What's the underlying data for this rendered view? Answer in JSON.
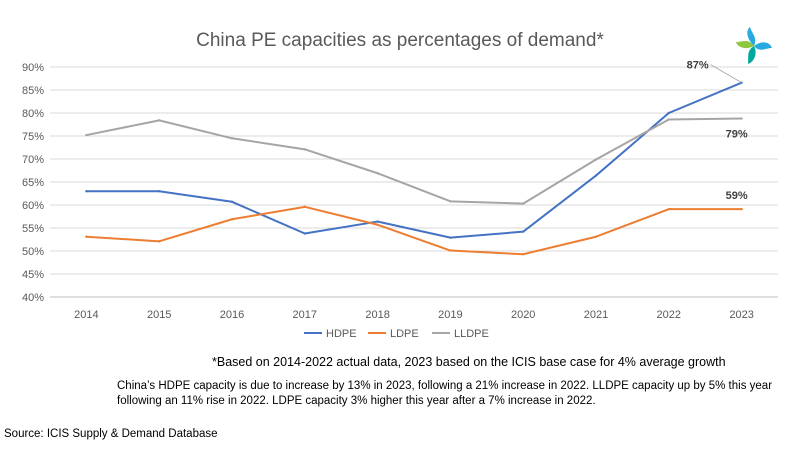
{
  "title": "China PE capacities as percentages of demand*",
  "footnote": "*Based on 2014-2022 actual data, 2023 based on the ICIS base case for 4% average growth",
  "summary": "China’s HDPE capacity is due to increase by 13% in 2023, following a 21% increase in 2022. LLDPE capacity up by 5% this year following an 11% rise in 2022. LDPE capacity 3% higher this year after a 7% increase in 2022.",
  "source": "Source: ICIS Supply & Demand Database",
  "chart_data": {
    "type": "line",
    "title": "China PE capacities as percentages of demand*",
    "xlabel": "",
    "ylabel": "",
    "categories": [
      "2014",
      "2015",
      "2016",
      "2017",
      "2018",
      "2019",
      "2020",
      "2021",
      "2022",
      "2023"
    ],
    "ylim": [
      40,
      90
    ],
    "ytick_step": 5,
    "ytick_format": "percent",
    "grid": "horizontal",
    "legend_position": "bottom",
    "series": [
      {
        "name": "HDPE",
        "color": "#4472C4",
        "values": [
          63,
          63,
          60.7,
          53.8,
          56.4,
          52.9,
          54.2,
          66.4,
          80,
          86.6
        ]
      },
      {
        "name": "LDPE",
        "color": "#ED7D31",
        "values": [
          53.1,
          52.1,
          56.9,
          59.6,
          55.7,
          50.1,
          49.3,
          53.1,
          59.1,
          59.1
        ]
      },
      {
        "name": "LLDPE",
        "color": "#A5A5A5",
        "values": [
          75.2,
          78.4,
          74.5,
          72.1,
          66.9,
          60.8,
          60.3,
          69.9,
          78.6,
          78.8
        ]
      }
    ],
    "annotations": [
      {
        "text": "87%",
        "series": "HDPE",
        "category": "2023"
      },
      {
        "text": "79%",
        "series": "LLDPE",
        "category": "2023"
      },
      {
        "text": "59%",
        "series": "LDPE",
        "category": "2023"
      }
    ]
  },
  "logo": {
    "name": "icis-logo-icon",
    "colors": [
      "#29ABE2",
      "#8DC63F",
      "#00A99D",
      "#27AAE1"
    ]
  }
}
